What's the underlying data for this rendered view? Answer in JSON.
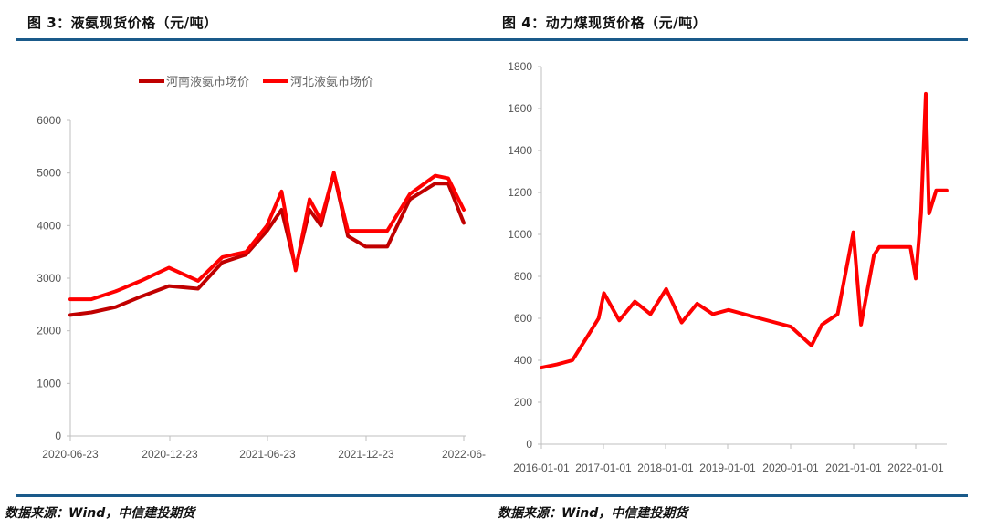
{
  "left": {
    "title": "图 3：液氨现货价格（元/吨）",
    "source": "数据来源：Wind，中信建投期货"
  },
  "right": {
    "title": "图 4：动力煤现货价格（元/吨）",
    "source": "数据来源：Wind，中信建投期货"
  },
  "colors": {
    "rule": "#1a5a8a",
    "henan": "#c00000",
    "hebei": "#ff0000",
    "axis": "#bfbfbf"
  },
  "chart_data": [
    {
      "type": "line",
      "title": "液氨现货价格（元/吨）",
      "xlabel": "",
      "ylabel": "",
      "ylim": [
        0,
        6000
      ],
      "yticks": [
        0,
        1000,
        2000,
        3000,
        4000,
        5000,
        6000
      ],
      "xticks": [
        "2020-06-23",
        "2020-12-23",
        "2021-06-23",
        "2021-12-23",
        "2022-06-"
      ],
      "grid": false,
      "legend_position": "top",
      "x": [
        "2020-06-23",
        "2020-08-01",
        "2020-09-15",
        "2020-11-01",
        "2020-12-23",
        "2021-02-15",
        "2021-04-01",
        "2021-05-15",
        "2021-06-23",
        "2021-07-20",
        "2021-08-15",
        "2021-09-10",
        "2021-10-01",
        "2021-10-25",
        "2021-11-20",
        "2021-12-23",
        "2022-02-01",
        "2022-03-15",
        "2022-05-01",
        "2022-05-25",
        "2022-06-23"
      ],
      "series": [
        {
          "name": "河南液氨市场价",
          "color": "#c00000",
          "values": [
            2300,
            2350,
            2450,
            2650,
            2850,
            2800,
            3300,
            3450,
            3900,
            4300,
            3200,
            4300,
            4000,
            5000,
            3800,
            3600,
            3600,
            4500,
            4800,
            4800,
            4050
          ]
        },
        {
          "name": "河北液氨市场价",
          "color": "#ff0000",
          "values": [
            2600,
            2600,
            2750,
            2950,
            3200,
            2950,
            3400,
            3500,
            4000,
            4650,
            3150,
            4500,
            4100,
            5000,
            3900,
            3900,
            3900,
            4600,
            4950,
            4900,
            4300
          ]
        }
      ]
    },
    {
      "type": "line",
      "title": "动力煤现货价格（元/吨）",
      "xlabel": "",
      "ylabel": "",
      "ylim": [
        0,
        1800
      ],
      "yticks": [
        0,
        200,
        400,
        600,
        800,
        1000,
        1200,
        1400,
        1600,
        1800
      ],
      "xticks": [
        "2016-01-01",
        "2017-01-01",
        "2018-01-01",
        "2019-01-01",
        "2020-01-01",
        "2021-01-01",
        "2022-01-01"
      ],
      "grid": false,
      "x": [
        "2016-01-01",
        "2016-04-01",
        "2016-07-01",
        "2016-10-01",
        "2016-12-01",
        "2017-01-01",
        "2017-04-01",
        "2017-07-01",
        "2017-10-01",
        "2018-01-01",
        "2018-04-01",
        "2018-07-01",
        "2018-10-01",
        "2019-01-01",
        "2019-07-01",
        "2020-01-01",
        "2020-05-01",
        "2020-07-01",
        "2020-10-01",
        "2021-01-01",
        "2021-02-15",
        "2021-05-01",
        "2021-06-01",
        "2021-09-01",
        "2021-12-01",
        "2022-01-01",
        "2022-02-01",
        "2022-03-01",
        "2022-03-20",
        "2022-05-01",
        "2022-07-01"
      ],
      "series": [
        {
          "name": "动力煤现货价格",
          "color": "#ff0000",
          "values": [
            365,
            380,
            400,
            520,
            600,
            720,
            590,
            680,
            620,
            740,
            580,
            670,
            620,
            640,
            600,
            560,
            470,
            570,
            620,
            1010,
            570,
            900,
            940,
            940,
            940,
            790,
            1100,
            1670,
            1100,
            1210,
            1210
          ]
        }
      ]
    }
  ]
}
